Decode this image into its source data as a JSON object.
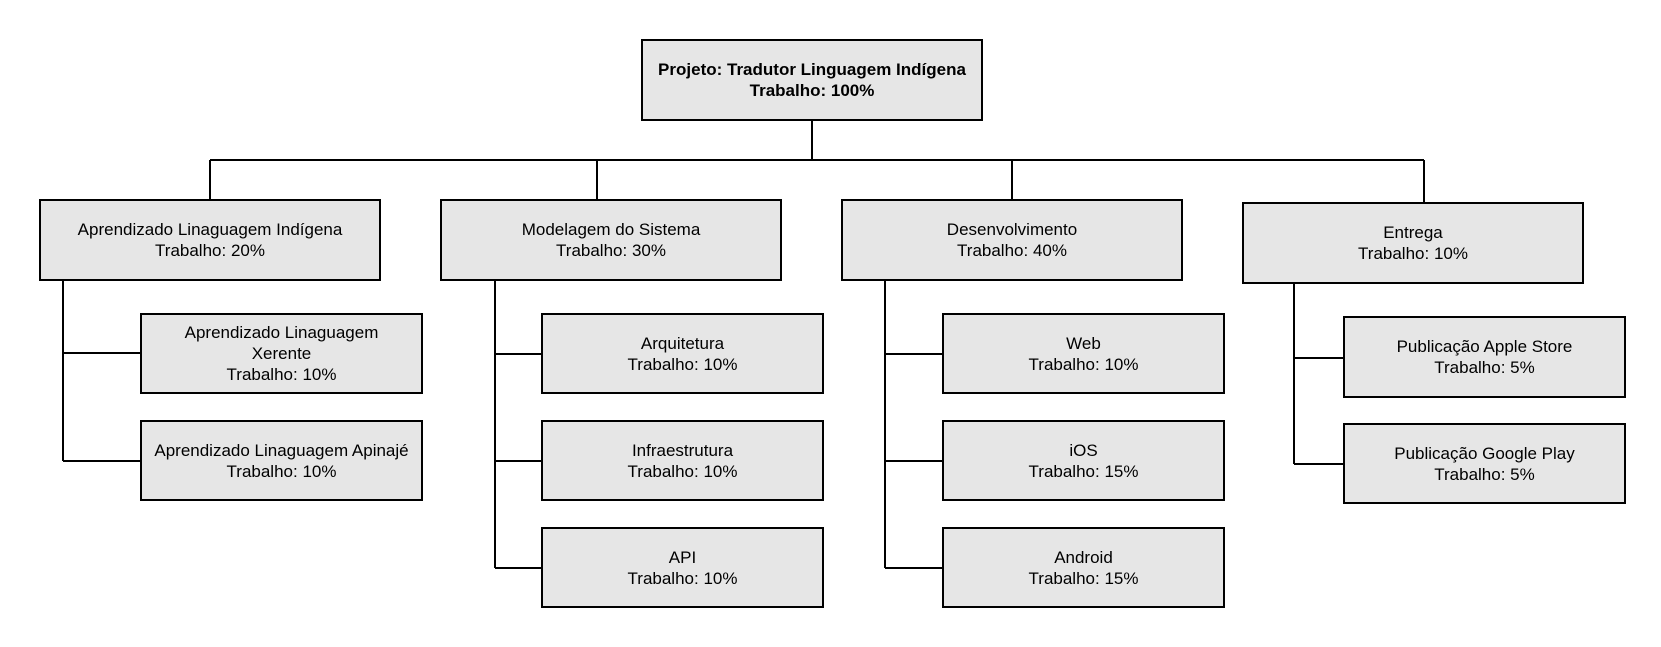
{
  "root": {
    "title": "Projeto: Tradutor Linguagem Indígena",
    "work": "Trabalho: 100%"
  },
  "branches": [
    {
      "title": "Aprendizado Linaguagem Indígena",
      "work": "Trabalho: 20%",
      "children": [
        {
          "title": "Aprendizado Linaguagem Xerente",
          "work": "Trabalho: 10%"
        },
        {
          "title": "Aprendizado Linaguagem Apinajé",
          "work": "Trabalho: 10%"
        }
      ]
    },
    {
      "title": "Modelagem do Sistema",
      "work": "Trabalho: 30%",
      "children": [
        {
          "title": "Arquitetura",
          "work": "Trabalho: 10%"
        },
        {
          "title": "Infraestrutura",
          "work": "Trabalho: 10%"
        },
        {
          "title": "API",
          "work": "Trabalho: 10%"
        }
      ]
    },
    {
      "title": "Desenvolvimento",
      "work": "Trabalho: 40%",
      "children": [
        {
          "title": "Web",
          "work": "Trabalho: 10%"
        },
        {
          "title": "iOS",
          "work": "Trabalho: 15%"
        },
        {
          "title": "Android",
          "work": "Trabalho: 15%"
        }
      ]
    },
    {
      "title": "Entrega",
      "work": "Trabalho: 10%",
      "children": [
        {
          "title": "Publicação Apple Store",
          "work": "Trabalho: 5%"
        },
        {
          "title": "Publicação Google Play",
          "work": "Trabalho: 5%"
        }
      ]
    }
  ]
}
